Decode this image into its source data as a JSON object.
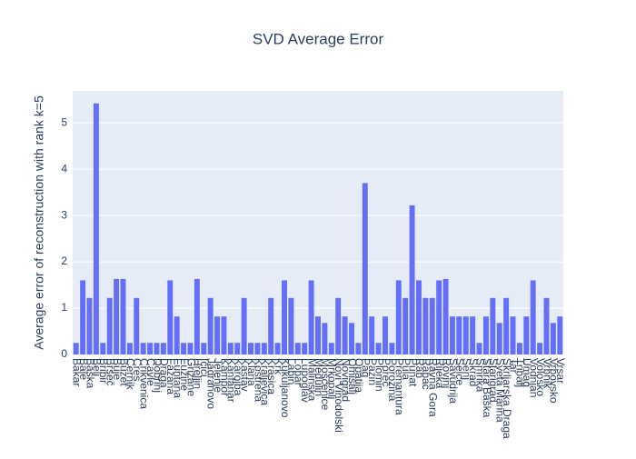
{
  "chart_data": {
    "type": "bar",
    "title": "SVD Average Error",
    "y_label": "Average error of reconstruction with rank k=5",
    "categories": [
      "Bakar",
      "Bale",
      "Baška",
      "Beli",
      "Bribir",
      "Brseč",
      "Buje",
      "Buzet",
      "Cernik",
      "Cres",
      "Crikvenica",
      "Čavle",
      "Dobrinj",
      "Draga",
      "Fažana",
      "Funtana",
      "Fužine",
      "Grižane",
      "Hreljin",
      "Ičići",
      "Jadranovo",
      "Jelenje",
      "Kampor",
      "Kanfanar",
      "Karojba",
      "Kastav",
      "Klana",
      "Kostrena",
      "Kraljevica",
      "Krasica",
      "Krk",
      "Kukuljanovo",
      "Labin",
      "Lopar",
      "Lupoglav",
      "Malinska",
      "Medulin",
      "Mošćenice",
      "Mrkopalj",
      "Novi Vinodolski",
      "Novigrad",
      "Omišalj",
      "Opatija",
      "Pag",
      "Pazin",
      "Plomin",
      "Poreč",
      "Porozina",
      "Premantura",
      "Pula",
      "Punat",
      "Rab",
      "Rabac",
      "Ravna Gora",
      "Rijeka",
      "Rovinj",
      "Savudrija",
      "Selce",
      "Senj",
      "Skrad",
      "Šmrika",
      "Stara Baška",
      "Starigrad",
      "Sveta Marina",
      "Škrljarska Draga",
      "Tar",
      "Tribalj",
      "Umag",
      "Vodnjan",
      "Volosko",
      "Vrbnik",
      "Vrbovsko",
      "Vrsar"
    ],
    "values": [
      0.25,
      1.6,
      1.22,
      5.42,
      0.25,
      1.22,
      1.63,
      1.63,
      0.25,
      1.22,
      0.25,
      0.25,
      0.25,
      0.25,
      1.6,
      0.82,
      0.25,
      0.25,
      1.63,
      0.25,
      1.22,
      0.82,
      0.82,
      0.25,
      0.25,
      1.22,
      0.25,
      0.25,
      0.25,
      1.22,
      0.25,
      1.6,
      1.22,
      0.25,
      0.25,
      1.6,
      0.82,
      0.68,
      0.25,
      1.22,
      0.82,
      0.68,
      0.25,
      3.7,
      0.82,
      0.25,
      0.82,
      0.25,
      1.6,
      1.22,
      3.22,
      1.6,
      1.22,
      1.22,
      1.6,
      1.63,
      0.82,
      0.82,
      0.82,
      0.82,
      0.25,
      0.82,
      1.22,
      0.68,
      1.22,
      0.82,
      0.25,
      0.82,
      1.6,
      0.25,
      1.22,
      0.68,
      0.82
    ],
    "color": "#636efa",
    "ylim": [
      0,
      5.69
    ],
    "yticks": [
      0,
      1,
      2,
      3,
      4,
      5
    ],
    "grid": true
  }
}
